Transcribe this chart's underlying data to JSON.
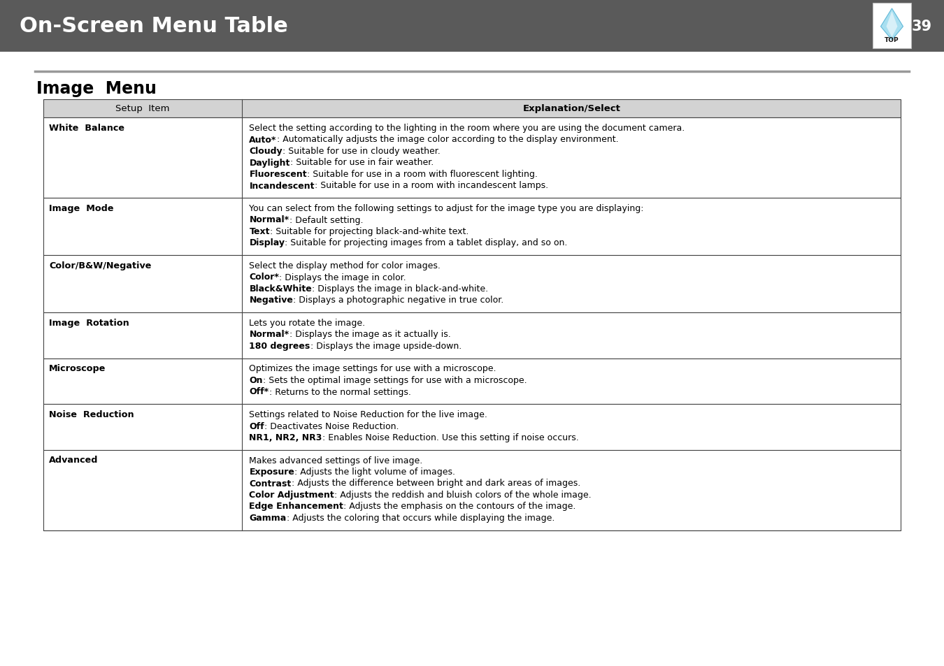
{
  "page_title": "On-Screen Menu Table",
  "page_number": "39",
  "section_title": "Image  Menu",
  "header_bg": "#5a5a5a",
  "header_text_color": "#ffffff",
  "table_header_bg": "#d3d3d3",
  "table_border_color": "#444444",
  "col1_header": "Setup  Item",
  "col2_header": "Explanation/Select",
  "bg_color": "#ffffff",
  "rows": [
    {
      "item": "White  Balance",
      "lines": [
        [
          [
            "n",
            "Select the setting according to the lighting in the room where you are using the document camera."
          ]
        ],
        [
          [
            "b",
            "Auto*"
          ],
          [
            " n",
            ": Automatically adjusts the image color according to the display environment."
          ]
        ],
        [
          [
            "b",
            "Cloudy"
          ],
          [
            " n",
            ": Suitable for use in cloudy weather."
          ]
        ],
        [
          [
            "b",
            "Daylight"
          ],
          [
            " n",
            ": Suitable for use in fair weather."
          ]
        ],
        [
          [
            "b",
            "Fluorescent"
          ],
          [
            " n",
            ": Suitable for use in a room with fluorescent lighting."
          ]
        ],
        [
          [
            "b",
            "Incandescent"
          ],
          [
            " n",
            ": Suitable for use in a room with incandescent lamps."
          ]
        ]
      ]
    },
    {
      "item": "Image  Mode",
      "lines": [
        [
          [
            "n",
            "You can select from the following settings to adjust for the image type you are displaying:"
          ]
        ],
        [
          [
            "b",
            "Normal*"
          ],
          [
            " n",
            ": Default setting."
          ]
        ],
        [
          [
            "b",
            "Text"
          ],
          [
            " n",
            ": Suitable for projecting black-and-white text."
          ]
        ],
        [
          [
            "b",
            "Display"
          ],
          [
            " n",
            ": Suitable for projecting images from a tablet display, and so on."
          ]
        ]
      ]
    },
    {
      "item": "Color/B&W/Negative",
      "lines": [
        [
          [
            "n",
            "Select the display method for color images."
          ]
        ],
        [
          [
            "b",
            "Color*"
          ],
          [
            " n",
            ": Displays the image in color."
          ]
        ],
        [
          [
            "b",
            "Black&White"
          ],
          [
            " n",
            ": Displays the image in black-and-white."
          ]
        ],
        [
          [
            "b",
            "Negative"
          ],
          [
            " n",
            ": Displays a photographic negative in true color."
          ]
        ]
      ]
    },
    {
      "item": "Image  Rotation",
      "lines": [
        [
          [
            "n",
            "Lets you rotate the image."
          ]
        ],
        [
          [
            "b",
            "Normal*"
          ],
          [
            " n",
            ": Displays the image as it actually is."
          ]
        ],
        [
          [
            "b",
            "180 degrees"
          ],
          [
            " n",
            ": Displays the image upside-down."
          ]
        ]
      ]
    },
    {
      "item": "Microscope",
      "lines": [
        [
          [
            "n",
            "Optimizes the image settings for use with a microscope."
          ]
        ],
        [
          [
            "b",
            "On"
          ],
          [
            " n",
            ": Sets the optimal image settings for use with a microscope."
          ]
        ],
        [
          [
            "b",
            "Off*"
          ],
          [
            " n",
            ": Returns to the normal settings."
          ]
        ]
      ]
    },
    {
      "item": "Noise  Reduction",
      "lines": [
        [
          [
            "n",
            "Settings related to Noise Reduction for the live image."
          ]
        ],
        [
          [
            "b",
            "Off"
          ],
          [
            " n",
            ": Deactivates Noise Reduction."
          ]
        ],
        [
          [
            "b",
            "NR1, NR2, NR3"
          ],
          [
            " n",
            ": Enables Noise Reduction. Use this setting if noise occurs."
          ]
        ]
      ]
    },
    {
      "item": "Advanced",
      "lines": [
        [
          [
            "n",
            "Makes advanced settings of live image."
          ]
        ],
        [
          [
            "b",
            "Exposure"
          ],
          [
            " n",
            ": Adjusts the light volume of images."
          ]
        ],
        [
          [
            "b",
            "Contrast"
          ],
          [
            " n",
            ": Adjusts the difference between bright and dark areas of images."
          ]
        ],
        [
          [
            "b",
            "Color Adjustment"
          ],
          [
            " n",
            ": Adjusts the reddish and bluish colors of the whole image."
          ]
        ],
        [
          [
            "b",
            "Edge Enhancement"
          ],
          [
            " n",
            ": Adjusts the emphasis on the contours of the image."
          ]
        ],
        [
          [
            "b",
            "Gamma"
          ],
          [
            " n",
            ": Adjusts the coloring that occurs while displaying the image."
          ]
        ]
      ]
    }
  ]
}
